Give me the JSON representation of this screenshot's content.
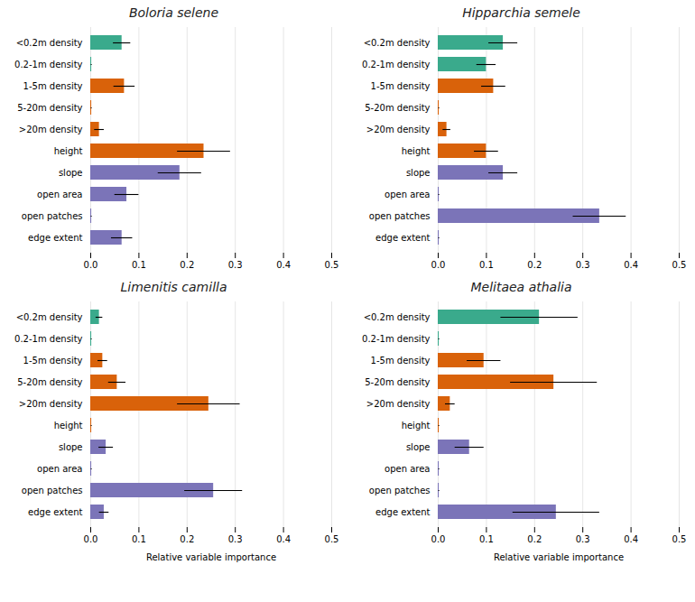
{
  "chart_data": [
    {
      "type": "bar",
      "orientation": "horizontal",
      "title": "Boloria selene",
      "categories": [
        "<0.2m density",
        "0.2-1m density",
        "1-5m density",
        "5-20m density",
        ">20m density",
        "height",
        "slope",
        "open area",
        "open patches",
        "edge extent"
      ],
      "values": [
        0.065,
        0.002,
        0.07,
        0.002,
        0.018,
        0.235,
        0.185,
        0.075,
        0.002,
        0.065
      ],
      "errors": [
        0.018,
        0.001,
        0.022,
        0.001,
        0.01,
        0.055,
        0.045,
        0.025,
        0.001,
        0.022
      ],
      "colors": [
        "#3aaa8c",
        "#3aaa8c",
        "#d9620a",
        "#d9620a",
        "#d9620a",
        "#d9620a",
        "#7b74b8",
        "#7b74b8",
        "#7b74b8",
        "#7b74b8"
      ],
      "xlim": [
        0.0,
        0.5
      ],
      "xticks": [
        {
          "value": 0.0,
          "label": "0.0"
        },
        0.1,
        0.2,
        0.3,
        0.4,
        0.5
      ],
      "grid": true
    },
    {
      "type": "bar",
      "orientation": "horizontal",
      "title": "Hipparchia semele",
      "categories": [
        "<0.2m density",
        "0.2-1m density",
        "1-5m density",
        "5-20m density",
        ">20m density",
        "height",
        "slope",
        "open area",
        "open patches",
        "edge extent"
      ],
      "values": [
        0.135,
        0.1,
        0.115,
        0.002,
        0.018,
        0.1,
        0.135,
        0.002,
        0.335,
        0.002
      ],
      "errors": [
        0.03,
        0.02,
        0.025,
        0.001,
        0.008,
        0.025,
        0.03,
        0.001,
        0.055,
        0.001
      ],
      "colors": [
        "#3aaa8c",
        "#3aaa8c",
        "#d9620a",
        "#d9620a",
        "#d9620a",
        "#d9620a",
        "#7b74b8",
        "#7b74b8",
        "#7b74b8",
        "#7b74b8"
      ],
      "xlim": [
        0.0,
        0.5
      ],
      "xticks": [
        {
          "value": 0.0,
          "label": "0.0"
        },
        0.1,
        0.2,
        0.3,
        0.4,
        0.5
      ],
      "grid": true
    },
    {
      "type": "bar",
      "orientation": "horizontal",
      "title": "Limenitis camilla",
      "categories": [
        "<0.2m density",
        "0.2-1m density",
        "1-5m density",
        "5-20m density",
        ">20m density",
        "height",
        "slope",
        "open area",
        "open patches",
        "edge extent"
      ],
      "values": [
        0.018,
        0.002,
        0.025,
        0.055,
        0.245,
        0.002,
        0.032,
        0.002,
        0.255,
        0.028
      ],
      "errors": [
        0.007,
        0.001,
        0.01,
        0.018,
        0.065,
        0.001,
        0.015,
        0.001,
        0.06,
        0.01
      ],
      "colors": [
        "#3aaa8c",
        "#3aaa8c",
        "#d9620a",
        "#d9620a",
        "#d9620a",
        "#d9620a",
        "#7b74b8",
        "#7b74b8",
        "#7b74b8",
        "#7b74b8"
      ],
      "xlim": [
        0.0,
        0.5
      ],
      "xticks": [
        {
          "value": 0.0,
          "label": "0.0"
        },
        0.1,
        0.2,
        0.3,
        0.4,
        0.5
      ],
      "xlabel": "Relative variable importance",
      "grid": true
    },
    {
      "type": "bar",
      "orientation": "horizontal",
      "title": "Melitaea athalia",
      "categories": [
        "<0.2m density",
        "0.2-1m density",
        "1-5m density",
        "5-20m density",
        ">20m density",
        "height",
        "slope",
        "open area",
        "open patches",
        "edge extent"
      ],
      "values": [
        0.21,
        0.002,
        0.095,
        0.24,
        0.025,
        0.002,
        0.065,
        0.002,
        0.002,
        0.245
      ],
      "errors": [
        0.08,
        0.001,
        0.035,
        0.09,
        0.01,
        0.001,
        0.03,
        0.001,
        0.001,
        0.09
      ],
      "colors": [
        "#3aaa8c",
        "#3aaa8c",
        "#d9620a",
        "#d9620a",
        "#d9620a",
        "#d9620a",
        "#7b74b8",
        "#7b74b8",
        "#7b74b8",
        "#7b74b8"
      ],
      "xlim": [
        0.0,
        0.5
      ],
      "xticks": [
        {
          "value": 0.0,
          "label": "0.0"
        },
        0.1,
        0.2,
        0.3,
        0.4,
        0.5
      ],
      "xlabel": "Relative variable importance",
      "grid": true
    }
  ]
}
